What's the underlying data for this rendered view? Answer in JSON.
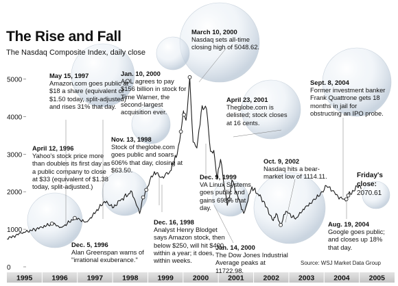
{
  "title": "The Rise and Fall",
  "subtitle": "The Nasdaq Composite Index, daily close",
  "source": "Source: WSJ Market Data Group",
  "chart_data": {
    "type": "line",
    "title": "The Rise and Fall",
    "subtitle": "The Nasdaq Composite Index, daily close",
    "xlabel": "",
    "ylabel": "",
    "x_categories": [
      "1995",
      "1996",
      "1997",
      "1998",
      "1999",
      "2000",
      "2001",
      "2002",
      "2003",
      "2004",
      "2005"
    ],
    "y_ticks": [
      0,
      1000,
      2000,
      3000,
      4000,
      5000
    ],
    "ylim": [
      0,
      5100
    ],
    "grid": false,
    "series": [
      {
        "name": "",
        "color": "#1a1a1a",
        "points": [
          [
            "1995-01-03",
            745
          ],
          [
            "1995-06-01",
            900
          ],
          [
            "1995-12-31",
            1050
          ],
          [
            "1996-04-12",
            1150
          ],
          [
            "1996-07-24",
            1050
          ],
          [
            "1996-12-05",
            1300
          ],
          [
            "1997-04-14",
            1200
          ],
          [
            "1997-10-08",
            1740
          ],
          [
            "1997-12-31",
            1570
          ],
          [
            "1998-04-01",
            1800
          ],
          [
            "1998-07-20",
            2000
          ],
          [
            "1998-10-08",
            1420
          ],
          [
            "1998-11-13",
            1850
          ],
          [
            "1998-12-16",
            2050
          ],
          [
            "1999-02-05",
            2420
          ],
          [
            "1999-04-01",
            2500
          ],
          [
            "1999-06-01",
            2400
          ],
          [
            "1999-08-10",
            2500
          ],
          [
            "1999-10-01",
            2800
          ],
          [
            "1999-11-01",
            3000
          ],
          [
            "1999-12-09",
            3600
          ],
          [
            "1999-12-31",
            4069
          ],
          [
            "2000-01-10",
            4050
          ],
          [
            "2000-01-31",
            3900
          ],
          [
            "2000-03-10",
            5048.62
          ],
          [
            "2000-04-14",
            3321
          ],
          [
            "2000-05-23",
            3164
          ],
          [
            "2000-07-17",
            4290
          ],
          [
            "2000-08-31",
            4206
          ],
          [
            "2000-10-12",
            3074
          ],
          [
            "2000-11-15",
            3100
          ],
          [
            "2000-12-20",
            2332
          ],
          [
            "2001-01-24",
            2860
          ],
          [
            "2001-04-04",
            1638
          ],
          [
            "2001-04-23",
            1800
          ],
          [
            "2001-05-22",
            2313
          ],
          [
            "2001-09-21",
            1423
          ],
          [
            "2001-12-05",
            2046
          ],
          [
            "2002-01-04",
            2060
          ],
          [
            "2002-03-20",
            1850
          ],
          [
            "2002-07-24",
            1229
          ],
          [
            "2002-08-22",
            1420
          ],
          [
            "2002-10-09",
            1114.11
          ],
          [
            "2002-12-02",
            1480
          ],
          [
            "2003-03-11",
            1271
          ],
          [
            "2003-06-30",
            1622
          ],
          [
            "2003-09-30",
            1790
          ],
          [
            "2004-01-26",
            2153
          ],
          [
            "2004-05-01",
            1920
          ],
          [
            "2004-08-12",
            1752
          ],
          [
            "2004-08-19",
            1800
          ],
          [
            "2004-09-08",
            1900
          ],
          [
            "2004-12-31",
            2175
          ],
          [
            "2005-01-20",
            2070.61
          ]
        ]
      }
    ],
    "annotations": [
      {
        "date": "May 15, 1997",
        "text": "Amazon.com goes public at $18 a share (equivalent of $1.50 today, split-adjusted) and rises 31% that day."
      },
      {
        "date": "Jan. 10, 2000",
        "text": "AOL agrees to pay $156 billion in stock for Time Warner, the second-largest acquisition ever."
      },
      {
        "date": "March 10, 2000",
        "text": "Nasdaq sets all-time closing high of 5048.62."
      },
      {
        "date": "April 23, 2001",
        "text": "Theglobe.com is delisted; stock closes at 16 cents."
      },
      {
        "date": "Sept. 8, 2004",
        "text": "Former investment banker Frank Quattrone gets 18 months in jail for obstructing an IPO probe."
      },
      {
        "date": "April 12, 1996",
        "text": "Yahoo's stock price more than doubles its first day as a public company to close at $33 (equivalent of $1.38 today, split-adjusted.)"
      },
      {
        "date": "Nov. 13, 1998",
        "text": "Stock of theglobe.com goes public and soars 606% that day, closing at $63.50."
      },
      {
        "date": "Dec. 9, 1999",
        "text": "VA Linux Systems goes public and gains 698% that day."
      },
      {
        "date": "Oct. 9, 2002",
        "text": "Nasdaq hits a bear-market low of 1114.11."
      },
      {
        "date": "Dec. 5, 1996",
        "text": "Alan Greenspan warns of \"irrational exuberance.\""
      },
      {
        "date": "Dec. 16, 1998",
        "text": "Analyst Henry Blodget says Amazon stock, then below $250, will hit $400 within a year; it does, within weeks."
      },
      {
        "date": "Jan. 14, 2000",
        "text": "The Dow Jones Industrial Average peaks at 11722.98."
      },
      {
        "date": "Aug. 19, 2004",
        "text": "Google goes public; and closes up 18% that day."
      }
    ],
    "friday_close": {
      "label": "Friday's close:",
      "value": "2070.61"
    }
  }
}
